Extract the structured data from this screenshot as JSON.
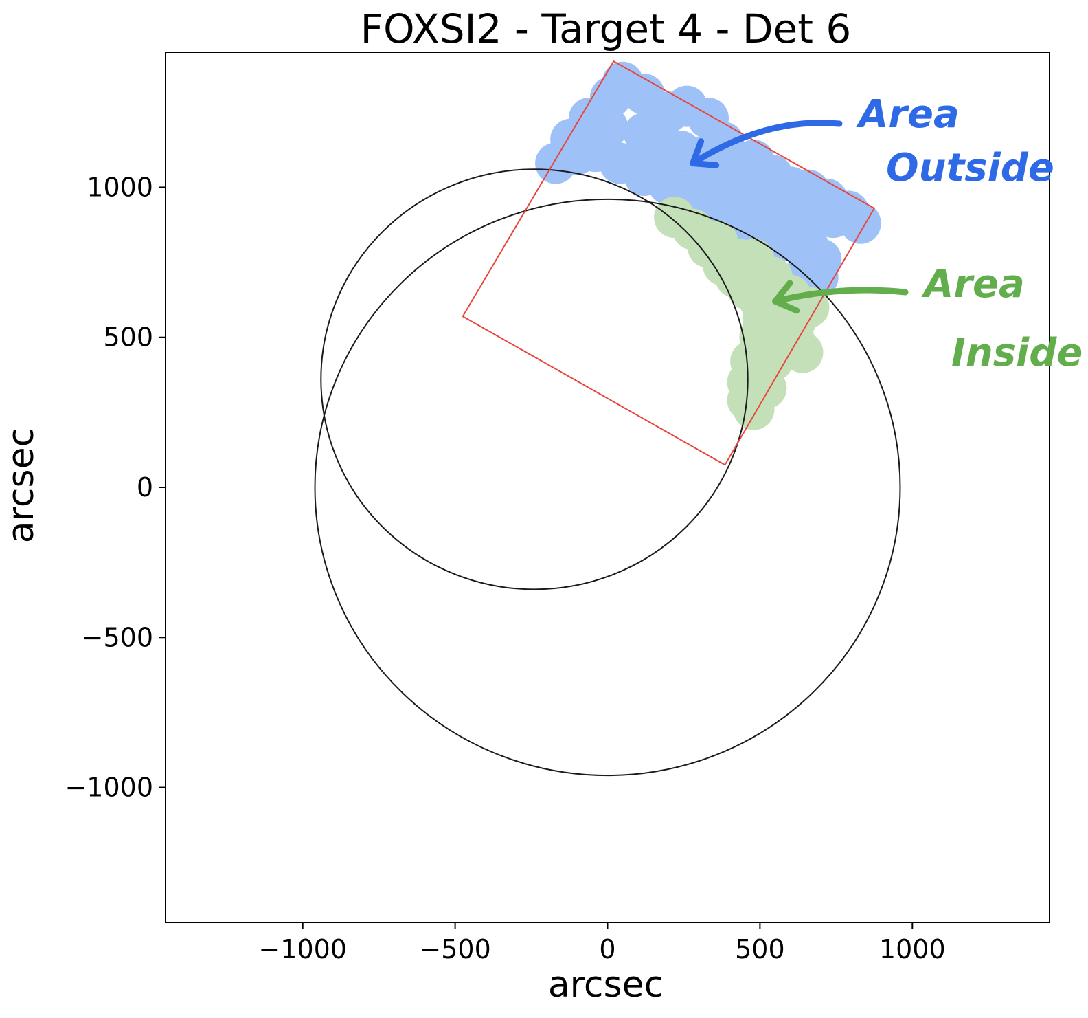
{
  "chart_data": {
    "type": "scatter",
    "title": "FOXSI2 - Target 4 - Det 6",
    "xlabel": "arcsec",
    "ylabel": "arcsec",
    "xlim": [
      -1450,
      1450
    ],
    "ylim": [
      -1450,
      1450
    ],
    "xticks": [
      -1000,
      -500,
      0,
      500,
      1000
    ],
    "yticks": [
      -1000,
      -500,
      0,
      500,
      1000
    ],
    "xtick_labels": [
      "−1000",
      "−500",
      "0",
      "500",
      "1000"
    ],
    "ytick_labels": [
      "−1000",
      "−500",
      "0",
      "500",
      "1000"
    ],
    "grid": false,
    "circles": [
      {
        "name": "",
        "cx": -240,
        "cy": 360,
        "r": 700,
        "color": "#1a1a1a"
      },
      {
        "name": "",
        "cx": 0,
        "cy": 0,
        "r": 960,
        "color": "#1a1a1a"
      }
    ],
    "detector_box": {
      "color": "#e8453c",
      "corners": [
        [
          20,
          1420
        ],
        [
          875,
          930
        ],
        [
          385,
          75
        ],
        [
          -475,
          570
        ]
      ]
    },
    "series": [
      {
        "color": "#9ec1f7",
        "points": [
          [
            -170,
            1080
          ],
          [
            -120,
            1160
          ],
          [
            -60,
            1230
          ],
          [
            10,
            1300
          ],
          [
            50,
            1350
          ],
          [
            120,
            1310
          ],
          [
            200,
            1250
          ],
          [
            260,
            1270
          ],
          [
            330,
            1230
          ],
          [
            380,
            1150
          ],
          [
            430,
            1080
          ],
          [
            480,
            1090
          ],
          [
            540,
            1040
          ],
          [
            600,
            1000
          ],
          [
            660,
            990
          ],
          [
            720,
            960
          ],
          [
            790,
            920
          ],
          [
            830,
            880
          ],
          [
            -40,
            1120
          ],
          [
            40,
            1080
          ],
          [
            120,
            1040
          ],
          [
            200,
            1010
          ],
          [
            280,
            980
          ],
          [
            360,
            950
          ],
          [
            440,
            920
          ],
          [
            520,
            890
          ],
          [
            600,
            850
          ],
          [
            660,
            800
          ],
          [
            700,
            760
          ],
          [
            690,
            700
          ],
          [
            120,
            1180
          ],
          [
            240,
            1120
          ],
          [
            360,
            1040
          ],
          [
            480,
            980
          ],
          [
            580,
            920
          ],
          [
            -100,
            1110
          ],
          [
            0,
            1200
          ],
          [
            160,
            1140
          ],
          [
            300,
            1100
          ],
          [
            420,
            1000
          ],
          [
            540,
            950
          ],
          [
            640,
            880
          ],
          [
            740,
            900
          ],
          [
            320,
            970
          ],
          [
            440,
            840
          ],
          [
            560,
            820
          ],
          [
            660,
            740
          ]
        ]
      },
      {
        "color": "#c4e0b8",
        "points": [
          [
            220,
            900
          ],
          [
            280,
            860
          ],
          [
            330,
            800
          ],
          [
            380,
            740
          ],
          [
            420,
            700
          ],
          [
            460,
            660
          ],
          [
            500,
            620
          ],
          [
            540,
            580
          ],
          [
            580,
            540
          ],
          [
            610,
            500
          ],
          [
            640,
            450
          ],
          [
            660,
            600
          ],
          [
            600,
            640
          ],
          [
            540,
            700
          ],
          [
            480,
            760
          ],
          [
            560,
            650
          ],
          [
            620,
            560
          ],
          [
            500,
            500
          ],
          [
            470,
            420
          ],
          [
            460,
            350
          ],
          [
            460,
            290
          ],
          [
            480,
            260
          ],
          [
            520,
            330
          ],
          [
            540,
            420
          ],
          [
            580,
            470
          ],
          [
            430,
            760
          ],
          [
            360,
            820
          ],
          [
            510,
            560
          ]
        ]
      }
    ],
    "annotations": [
      {
        "text_lines": [
          "Area",
          "Outside"
        ],
        "color": "#2f6ae6",
        "arrow_to": [
          280,
          1080
        ]
      },
      {
        "text_lines": [
          "Area",
          "Inside"
        ],
        "color": "#62ad4c",
        "arrow_to": [
          550,
          620
        ]
      }
    ]
  }
}
